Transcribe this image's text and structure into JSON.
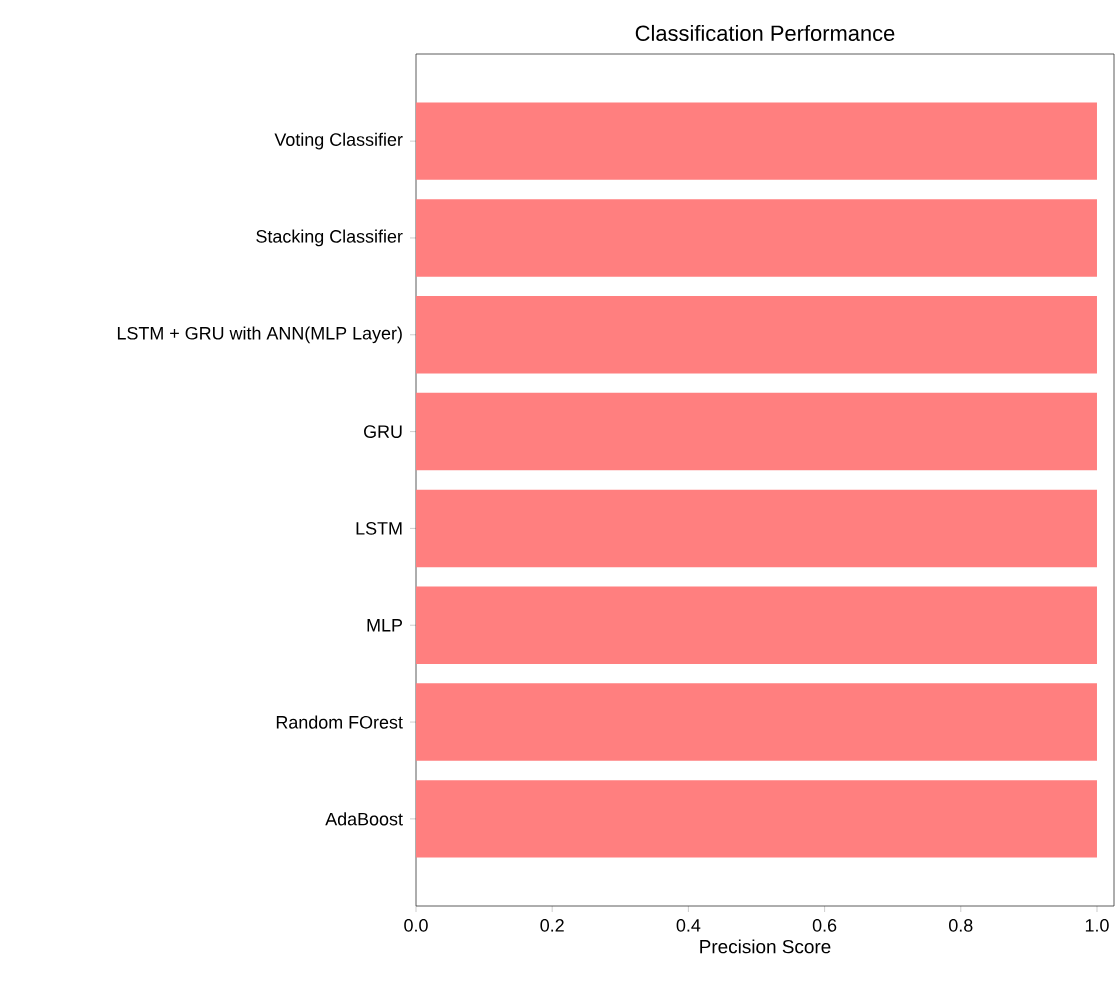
{
  "chart_data": {
    "type": "bar",
    "orientation": "horizontal",
    "title": "Classification Performance",
    "xlabel": "Precision Score",
    "categories": [
      "Voting Classifier",
      "Stacking Classifier",
      "LSTM + GRU with ANN(MLP Layer)",
      "GRU",
      "LSTM",
      "MLP",
      "Random FOrest",
      "AdaBoost"
    ],
    "values": [
      1.0,
      1.0,
      1.0,
      1.0,
      1.0,
      1.0,
      1.0,
      1.0
    ],
    "color": "#ff7f7f",
    "xlim": [
      0,
      1.025
    ],
    "xticks": [
      {
        "value": 0,
        "label": "0.0"
      },
      {
        "value": 0.2,
        "label": "0.2"
      },
      {
        "value": 0.4,
        "label": "0.4"
      },
      {
        "value": 0.6,
        "label": "0.6"
      },
      {
        "value": 0.8,
        "label": "0.8"
      },
      {
        "value": 1,
        "label": "1.0"
      }
    ]
  }
}
